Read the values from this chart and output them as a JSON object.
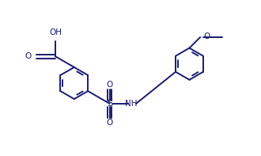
{
  "line_color": "#1a1a6e",
  "bg_color": "#ffffff",
  "font_size": 7.5,
  "line_width": 1.4,
  "figsize": [
    3.3,
    1.97
  ],
  "dpi": 100,
  "xlim": [
    0.0,
    10.0
  ],
  "ylim": [
    0.0,
    6.0
  ]
}
